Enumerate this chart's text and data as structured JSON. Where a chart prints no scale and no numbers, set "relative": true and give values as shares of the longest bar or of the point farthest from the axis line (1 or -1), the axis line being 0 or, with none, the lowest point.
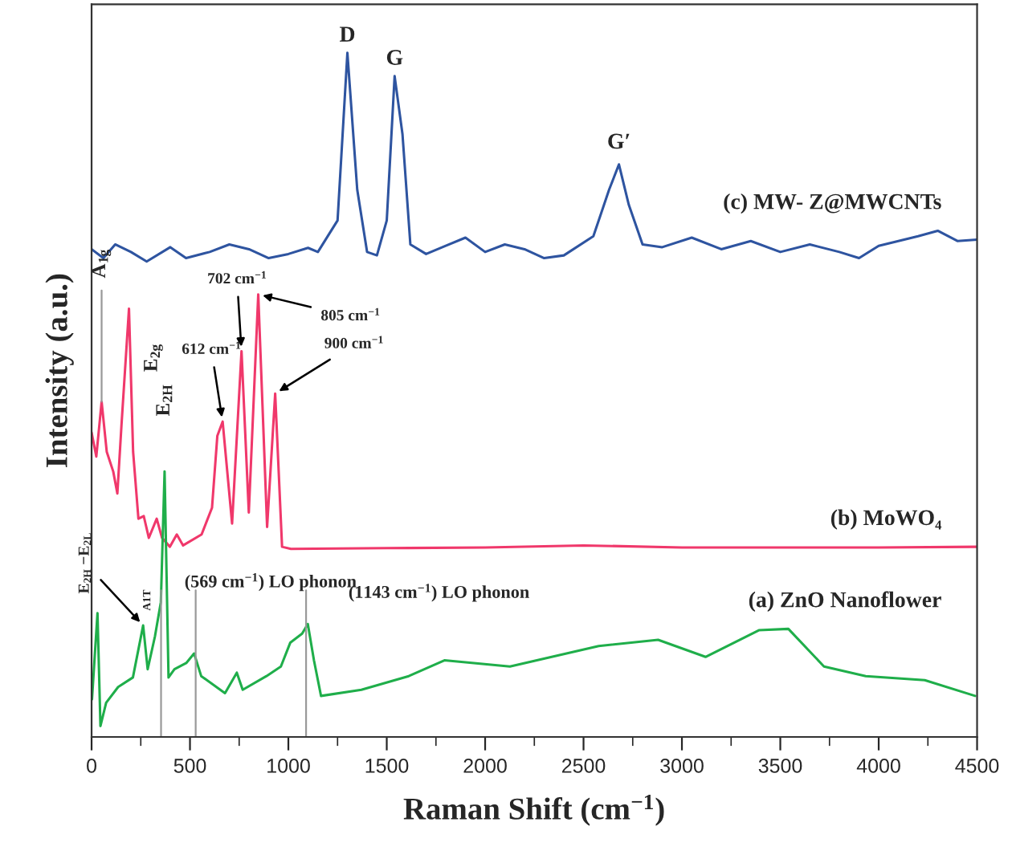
{
  "chart_data": {
    "type": "line",
    "relative": true,
    "xlabel": "Raman Shift (cm$^{−1}$)",
    "ylabel": "Intensity (a.u.)",
    "xlim": [
      0,
      4500
    ],
    "xticks": [
      0,
      500,
      1000,
      1500,
      2000,
      2500,
      3000,
      3500,
      4000,
      4500
    ],
    "tick_labels": "x",
    "grid": false,
    "line_style": "solid",
    "marker": "none",
    "series": [
      {
        "name": "(c) MW- Z@MWCNTs",
        "color": "#2e54a0",
        "x": [
          0,
          60,
          120,
          200,
          280,
          400,
          480,
          600,
          700,
          800,
          900,
          1000,
          1100,
          1150,
          1250,
          1300,
          1350,
          1400,
          1450,
          1500,
          1540,
          1580,
          1620,
          1700,
          1800,
          1900,
          2000,
          2100,
          2200,
          2300,
          2400,
          2550,
          2630,
          2680,
          2730,
          2800,
          2900,
          3050,
          3200,
          3350,
          3500,
          3650,
          3800,
          3900,
          4000,
          4100,
          4200,
          4300,
          4400,
          4500
        ],
        "values": [
          0.713,
          0.7,
          0.72,
          0.709,
          0.695,
          0.716,
          0.7,
          0.709,
          0.72,
          0.713,
          0.7,
          0.706,
          0.715,
          0.709,
          0.755,
          1.0,
          0.8,
          0.709,
          0.704,
          0.755,
          0.966,
          0.881,
          0.72,
          0.706,
          0.718,
          0.73,
          0.709,
          0.72,
          0.713,
          0.7,
          0.704,
          0.732,
          0.8,
          0.837,
          0.778,
          0.72,
          0.716,
          0.73,
          0.713,
          0.725,
          0.709,
          0.72,
          0.709,
          0.7,
          0.718,
          0.725,
          0.732,
          0.74,
          0.725,
          0.727
        ]
      },
      {
        "name": "(b) MoWO₄",
        "color": "#f0386b",
        "x": [
          0,
          24,
          51,
          77,
          110,
          131,
          152,
          190,
          211,
          238,
          265,
          291,
          331,
          358,
          398,
          433,
          465,
          559,
          612,
          639,
          666,
          714,
          762,
          799,
          847,
          892,
          933,
          968,
          1013,
          1500,
          2000,
          2500,
          3000,
          3500,
          4000,
          4500
        ],
        "values": [
          0.445,
          0.41,
          0.49,
          0.417,
          0.388,
          0.356,
          0.456,
          0.626,
          0.417,
          0.319,
          0.323,
          0.291,
          0.319,
          0.291,
          0.278,
          0.296,
          0.28,
          0.296,
          0.335,
          0.44,
          0.461,
          0.312,
          0.564,
          0.328,
          0.647,
          0.307,
          0.502,
          0.278,
          0.275,
          0.276,
          0.277,
          0.28,
          0.277,
          0.277,
          0.277,
          0.278
        ]
      },
      {
        "name": "(a) ZnO Nanoflower",
        "color": "#1fae4a",
        "x": [
          2,
          30,
          45,
          74,
          135,
          210,
          262,
          285,
          322,
          352,
          371,
          391,
          421,
          481,
          521,
          557,
          678,
          738,
          768,
          889,
          962,
          1010,
          1070,
          1099,
          1130,
          1166,
          1371,
          1612,
          1793,
          2126,
          2577,
          2879,
          3120,
          3391,
          3541,
          3722,
          3934,
          4234,
          4490
        ],
        "values": [
          0.055,
          0.181,
          0.016,
          0.05,
          0.073,
          0.087,
          0.163,
          0.099,
          0.147,
          0.197,
          0.388,
          0.087,
          0.099,
          0.108,
          0.122,
          0.089,
          0.064,
          0.094,
          0.069,
          0.089,
          0.103,
          0.138,
          0.151,
          0.165,
          0.112,
          0.06,
          0.069,
          0.089,
          0.112,
          0.103,
          0.133,
          0.142,
          0.117,
          0.156,
          0.158,
          0.103,
          0.089,
          0.083,
          0.06
        ]
      }
    ],
    "ref_lines": [
      {
        "axis": "x",
        "value": 353,
        "color": "#999999"
      },
      {
        "axis": "x",
        "value": 529,
        "color": "#999999"
      },
      {
        "axis": "x",
        "value": 1090,
        "color": "#999999"
      }
    ],
    "annotations": [
      {
        "text": "D",
        "x": 1300,
        "y": 1.0
      },
      {
        "text": "G",
        "x": 1540,
        "y": 0.966
      },
      {
        "text": "G′",
        "x": 2680,
        "y": 0.837
      },
      {
        "text": "A$_{1g}$",
        "x": 51,
        "y": 0.49
      },
      {
        "text": "E$_{2g}$",
        "x": 190,
        "y": 0.626
      },
      {
        "text": "612 cm$^{−1}$",
        "x": 666,
        "y": 0.461
      },
      {
        "text": "702 cm$^{−1}$",
        "x": 762,
        "y": 0.564
      },
      {
        "text": "805 cm$^{−1}$",
        "x": 847,
        "y": 0.647
      },
      {
        "text": "900 cm$^{−1}$",
        "x": 933,
        "y": 0.502
      },
      {
        "text": "E$_{2H}$",
        "x": 371,
        "y": 0.388
      },
      {
        "text": "E$_{2H}$ −E$_{2L}$",
        "x": 262,
        "y": 0.163
      },
      {
        "text": "A1T",
        "x": 353,
        "y": 0.2
      },
      {
        "text": "(569 cm$^{−1}$) LO phonon",
        "x": 529,
        "y": 0.2
      },
      {
        "text": "(1143 cm$^{−1}$) LO phonon",
        "x": 1090,
        "y": 0.165
      }
    ]
  }
}
